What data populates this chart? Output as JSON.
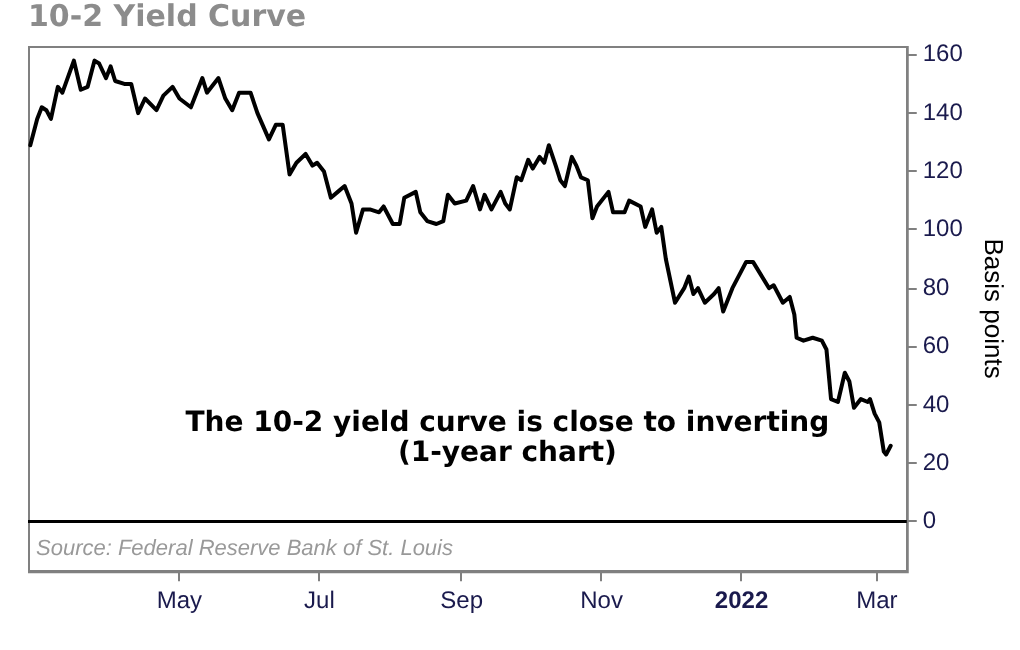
{
  "chart_data": {
    "type": "line",
    "title": "10-2 Yield Curve",
    "ylabel": "Basis points",
    "annotations": [
      "The 10-2 yield curve is close to inverting\n(1-year chart)",
      "Source: Federal Reserve Bank of St. Louis"
    ],
    "x": [
      "2021-02-25",
      "2021-02-28",
      "2021-03-02",
      "2021-03-04",
      "2021-03-06",
      "2021-03-09",
      "2021-03-11",
      "2021-03-16",
      "2021-03-19",
      "2021-03-22",
      "2021-03-25",
      "2021-03-27",
      "2021-03-30",
      "2021-04-01",
      "2021-04-03",
      "2021-04-07",
      "2021-04-10",
      "2021-04-13",
      "2021-04-16",
      "2021-04-21",
      "2021-04-24",
      "2021-04-28",
      "2021-05-01",
      "2021-05-06",
      "2021-05-11",
      "2021-05-13",
      "2021-05-18",
      "2021-05-21",
      "2021-05-24",
      "2021-05-27",
      "2021-06-01",
      "2021-06-04",
      "2021-06-09",
      "2021-06-12",
      "2021-06-15",
      "2021-06-18",
      "2021-06-21",
      "2021-06-25",
      "2021-06-28",
      "2021-06-30",
      "2021-07-03",
      "2021-07-06",
      "2021-07-09",
      "2021-07-12",
      "2021-07-15",
      "2021-07-17",
      "2021-07-20",
      "2021-07-23",
      "2021-07-27",
      "2021-07-29",
      "2021-08-02",
      "2021-08-05",
      "2021-08-07",
      "2021-08-12",
      "2021-08-14",
      "2021-08-17",
      "2021-08-21",
      "2021-08-24",
      "2021-08-26",
      "2021-08-29",
      "2021-09-03",
      "2021-09-06",
      "2021-09-09",
      "2021-09-11",
      "2021-09-14",
      "2021-09-18",
      "2021-09-20",
      "2021-09-22",
      "2021-09-25",
      "2021-09-27",
      "2021-09-30",
      "2021-10-02",
      "2021-10-05",
      "2021-10-07",
      "2021-10-09",
      "2021-10-12",
      "2021-10-14",
      "2021-10-16",
      "2021-10-19",
      "2021-10-21",
      "2021-10-23",
      "2021-10-26",
      "2021-10-28",
      "2021-10-30",
      "2021-11-04",
      "2021-11-06",
      "2021-11-11",
      "2021-11-13",
      "2021-11-18",
      "2021-11-20",
      "2021-11-23",
      "2021-11-25",
      "2021-11-27",
      "2021-11-29",
      "2021-12-03",
      "2021-12-07",
      "2021-12-09",
      "2021-12-11",
      "2021-12-13",
      "2021-12-16",
      "2021-12-20",
      "2021-12-22",
      "2021-12-24",
      "2021-12-28",
      "2022-01-03",
      "2022-01-06",
      "2022-01-13",
      "2022-01-15",
      "2022-01-19",
      "2022-01-22",
      "2022-01-24",
      "2022-01-25",
      "2022-01-28",
      "2022-02-01",
      "2022-02-05",
      "2022-02-07",
      "2022-02-09",
      "2022-02-12",
      "2022-02-15",
      "2022-02-17",
      "2022-02-19",
      "2022-02-22",
      "2022-02-25",
      "2022-02-26",
      "2022-02-28",
      "2022-03-02",
      "2022-03-04",
      "2022-03-05",
      "2022-03-07"
    ],
    "series": [
      {
        "color": "#000000",
        "values": [
          129,
          138,
          142,
          141,
          138,
          149,
          147,
          158,
          148,
          149,
          158,
          157,
          152,
          156,
          151,
          150,
          150,
          140,
          145,
          141,
          146,
          149,
          145,
          142,
          152,
          147,
          152,
          145,
          141,
          147,
          147,
          140,
          131,
          136,
          136,
          119,
          123,
          126,
          122,
          123,
          120,
          111,
          113,
          115,
          109,
          99,
          107,
          107,
          106,
          108,
          102,
          102,
          111,
          113,
          106,
          103,
          102,
          103,
          112,
          109,
          110,
          115,
          107,
          112,
          107,
          113,
          109,
          107,
          118,
          117,
          124,
          121,
          125,
          123,
          129,
          122,
          117,
          115,
          125,
          122,
          118,
          117,
          104,
          108,
          113,
          106,
          106,
          110,
          108,
          101,
          107,
          99,
          101,
          90,
          75,
          80,
          84,
          78,
          80,
          75,
          78,
          80,
          72,
          80,
          89,
          89,
          80,
          81,
          75,
          77,
          71,
          63,
          62,
          63,
          62,
          59,
          42,
          41,
          51,
          48,
          39,
          42,
          41,
          42,
          37,
          34,
          24,
          23,
          26
        ]
      }
    ],
    "xlim": [
      "2021-02-24",
      "2022-03-14"
    ],
    "xticks": [
      {
        "value": "2021-05-01",
        "label": "May"
      },
      {
        "value": "2021-07-01",
        "label": "Jul"
      },
      {
        "value": "2021-09-01",
        "label": "Sep"
      },
      {
        "value": "2021-11-01",
        "label": "Nov"
      },
      {
        "value": "2022-01-01",
        "label": "2022"
      },
      {
        "value": "2022-03-01",
        "label": "Mar"
      }
    ],
    "ylim": [
      -17,
      163
    ],
    "yticks": [
      0,
      20,
      40,
      60,
      80,
      100,
      120,
      140,
      160
    ],
    "ref_lines": [
      {
        "axis": "y",
        "value": 0,
        "color": "#000000"
      }
    ],
    "grid": false,
    "legend": false,
    "marker": "none",
    "line_style": "solid"
  }
}
